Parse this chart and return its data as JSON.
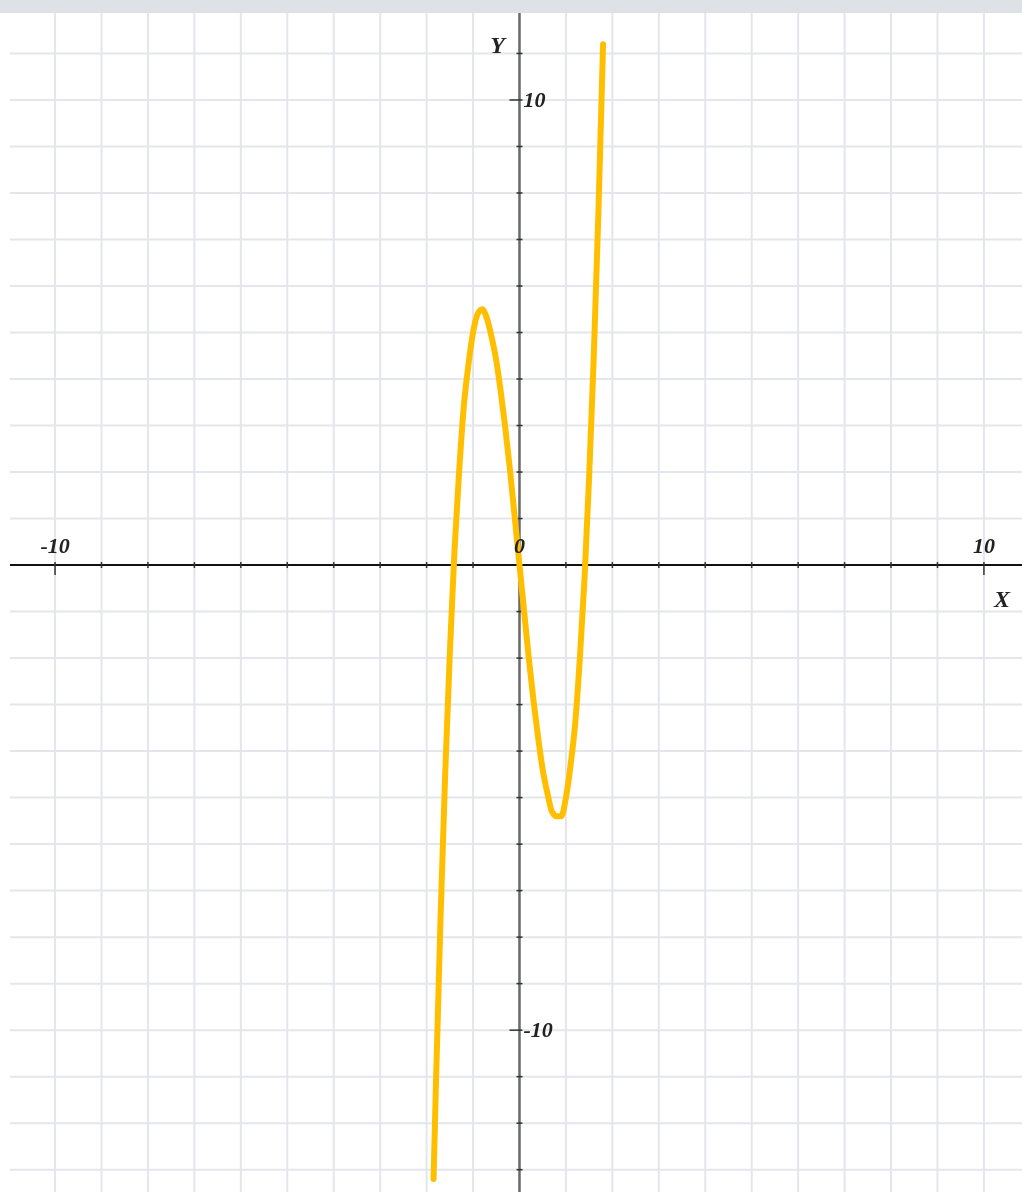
{
  "chart_data": {
    "type": "line",
    "xlabel": "X",
    "ylabel": "Y",
    "x": [
      -1.85,
      -1.8,
      -1.7,
      -1.6,
      -1.5,
      -1.4,
      -1.3,
      -1.2,
      -1.1,
      -1.0,
      -0.9,
      -0.8,
      -0.7,
      -0.6,
      -0.5,
      -0.4,
      -0.3,
      -0.2,
      -0.1,
      0,
      0.1,
      0.2,
      0.3,
      0.4,
      0.5,
      0.6,
      0.7,
      0.8,
      0.9,
      1.0,
      1.1,
      1.2,
      1.3,
      1.4,
      1.5,
      1.6,
      1.7,
      1.8
    ],
    "series": [
      {
        "color": "#ffbf00",
        "values": [
          -13.2,
          -11.2,
          -7.6,
          -4.5,
          -1.9,
          0.3,
          2.0,
          3.4,
          4.3,
          5.0,
          5.4,
          5.5,
          5.3,
          4.9,
          4.4,
          3.7,
          2.9,
          2.0,
          1.0,
          0,
          -1.0,
          -2.0,
          -2.9,
          -3.7,
          -4.4,
          -4.9,
          -5.3,
          -5.4,
          -5.4,
          -5.0,
          -4.3,
          -3.4,
          -2.0,
          -0.3,
          1.9,
          4.5,
          7.6,
          11.2
        ]
      }
    ],
    "xlim": [
      -10.97,
      10.82
    ],
    "ylim": [
      -13.48,
      11.87
    ],
    "xticks": [
      -10,
      {
        "value": -9,
        "label": null
      },
      {
        "value": -8,
        "label": null
      },
      {
        "value": -7,
        "label": null
      },
      {
        "value": -6,
        "label": null
      },
      {
        "value": -5,
        "label": null
      },
      {
        "value": -4,
        "label": null
      },
      {
        "value": -3,
        "label": null
      },
      {
        "value": -2,
        "label": null
      },
      {
        "value": -1,
        "label": null
      },
      0,
      {
        "value": 1,
        "label": null
      },
      {
        "value": 2,
        "label": null
      },
      {
        "value": 3,
        "label": null
      },
      {
        "value": 4,
        "label": null
      },
      {
        "value": 5,
        "label": null
      },
      {
        "value": 6,
        "label": null
      },
      {
        "value": 7,
        "label": null
      },
      {
        "value": 8,
        "label": null
      },
      {
        "value": 9,
        "label": null
      },
      10
    ],
    "yticks": [
      {
        "value": -13,
        "label": null
      },
      {
        "value": -12,
        "label": null
      },
      {
        "value": -11,
        "label": null
      },
      -10,
      {
        "value": -9,
        "label": null
      },
      {
        "value": -8,
        "label": null
      },
      {
        "value": -7,
        "label": null
      },
      {
        "value": -6,
        "label": null
      },
      {
        "value": -5,
        "label": null
      },
      {
        "value": -4,
        "label": null
      },
      {
        "value": -3,
        "label": null
      },
      {
        "value": -2,
        "label": null
      },
      {
        "value": -1,
        "label": null
      },
      {
        "value": 0,
        "label": null
      },
      {
        "value": 1,
        "label": null
      },
      {
        "value": 2,
        "label": null
      },
      {
        "value": 3,
        "label": null
      },
      {
        "value": 4,
        "label": null
      },
      {
        "value": 5,
        "label": null
      },
      {
        "value": 6,
        "label": null
      },
      {
        "value": 7,
        "label": null
      },
      {
        "value": 8,
        "label": null
      },
      {
        "value": 9,
        "label": null
      },
      10,
      {
        "value": 11,
        "label": null
      }
    ],
    "grid": true,
    "marker": "none",
    "line_style": "solid"
  }
}
